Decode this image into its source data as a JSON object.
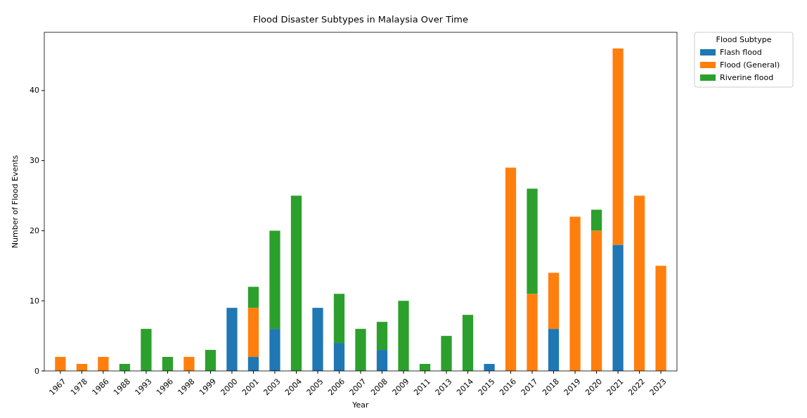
{
  "chart_data": {
    "type": "bar",
    "title": "Flood Disaster Subtypes in Malaysia Over Time",
    "xlabel": "Year",
    "ylabel": "Number of Flood Events",
    "legend_title": "Flood Subtype",
    "legend": "top right",
    "stacked": true,
    "categories": [
      "1967",
      "1978",
      "1986",
      "1988",
      "1993",
      "1996",
      "1998",
      "1999",
      "2000",
      "2001",
      "2003",
      "2004",
      "2005",
      "2006",
      "2007",
      "2008",
      "2009",
      "2011",
      "2013",
      "2014",
      "2015",
      "2016",
      "2017",
      "2018",
      "2019",
      "2020",
      "2021",
      "2022",
      "2023"
    ],
    "series": [
      {
        "name": "Flash flood",
        "color": "#1f77b4",
        "values": [
          0,
          0,
          0,
          0,
          0,
          0,
          0,
          0,
          9,
          2,
          6,
          0,
          9,
          4,
          0,
          3,
          0,
          0,
          0,
          0,
          1,
          0,
          0,
          6,
          0,
          0,
          18,
          0,
          0
        ]
      },
      {
        "name": "Flood (General)",
        "color": "#ff7f0e",
        "values": [
          2,
          1,
          2,
          0,
          0,
          0,
          2,
          0,
          0,
          7,
          0,
          0,
          0,
          0,
          0,
          0,
          0,
          0,
          0,
          0,
          0,
          29,
          11,
          8,
          22,
          20,
          28,
          25,
          15
        ]
      },
      {
        "name": "Riverine flood",
        "color": "#2ca02c",
        "values": [
          0,
          0,
          0,
          1,
          6,
          2,
          0,
          3,
          0,
          3,
          14,
          25,
          0,
          7,
          6,
          4,
          10,
          1,
          5,
          8,
          0,
          0,
          15,
          0,
          0,
          3,
          0,
          0,
          0
        ]
      }
    ],
    "ylim": [
      0,
      48.3
    ],
    "yticks": [
      0,
      10,
      20,
      30,
      40
    ]
  }
}
